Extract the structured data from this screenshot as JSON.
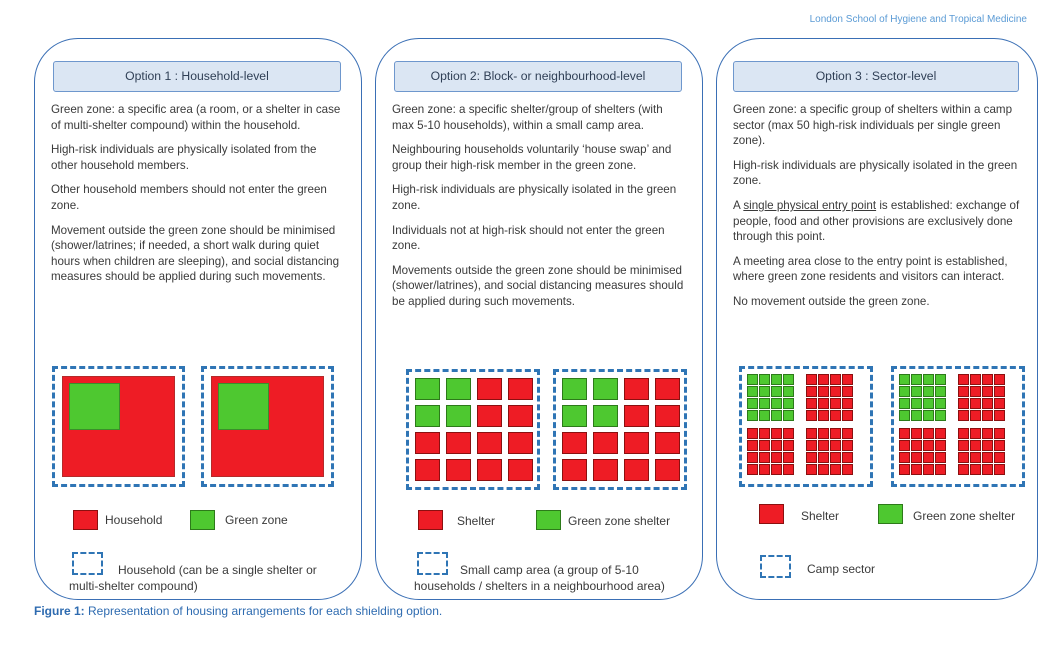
{
  "source": "London School of Hygiene and Tropical Medicine",
  "colors": {
    "red": "#ee1c25",
    "green": "#4ec830",
    "dash": "#2f75b5",
    "panel_border": "#3a6fb5",
    "title_fill": "#dbe6f3"
  },
  "options": [
    {
      "title": "Option 1 : Household-level",
      "paragraphs": [
        "Green zone: a specific area (a room, or a shelter in case of multi-shelter compound) within the household.",
        "High-risk individuals are physically isolated from the other household members.",
        "Other household members should not enter the green zone.",
        "Movement outside the green zone should be minimised (shower/latrines; if needed, a short walk during quiet hours when children are sleeping), and social distancing measures should be applied during such movements."
      ],
      "legend": {
        "red": "Household",
        "green": "Green zone",
        "dashed": "Household (can be a single shelter or multi-shelter compound)"
      }
    },
    {
      "title": "Option 2: Block- or neighbourhood-level",
      "paragraphs": [
        "Green zone: a specific shelter/group of shelters (with max 5-10 households), within a small camp area.",
        "Neighbouring households voluntarily ‘house swap’ and group their high-risk member in the green zone.",
        "High-risk individuals are physically isolated in the green zone.",
        "Individuals not at high-risk should not enter the green zone.",
        "Movements outside the green zone should be minimised (shower/latrines), and social distancing measures should be applied during such movements."
      ],
      "grids": [
        [
          "GGRR",
          "GGRR",
          "RRRR",
          "RRRR"
        ],
        [
          "GGRR",
          "GGRR",
          "RRRR",
          "RRRR"
        ]
      ],
      "legend": {
        "red": "Shelter",
        "green": "Green zone shelter",
        "dashed": "Small camp area (a group of 5-10 households / shelters in a neighbourhood area)"
      }
    },
    {
      "title": "Option 3 : Sector-level",
      "paragraphs": [
        "Green zone: a specific group of shelters within a camp sector (max 50 high-risk individuals per single green zone).",
        "High-risk individuals are physically isolated in the green zone.",
        {
          "pre": "A ",
          "underline": "single physical entry point",
          "post": " is established: exchange of people, food and other provisions are exclusively done through this point."
        },
        "A meeting area close to the entry point is established, where green zone residents and visitors can interact.",
        "No movement outside the green zone."
      ],
      "legend": {
        "red": "Shelter",
        "green": "Green zone shelter",
        "dashed": "Camp sector"
      }
    }
  ],
  "figure_label": "Figure 1:",
  "figure_caption": " Representation of housing arrangements for each shielding option."
}
